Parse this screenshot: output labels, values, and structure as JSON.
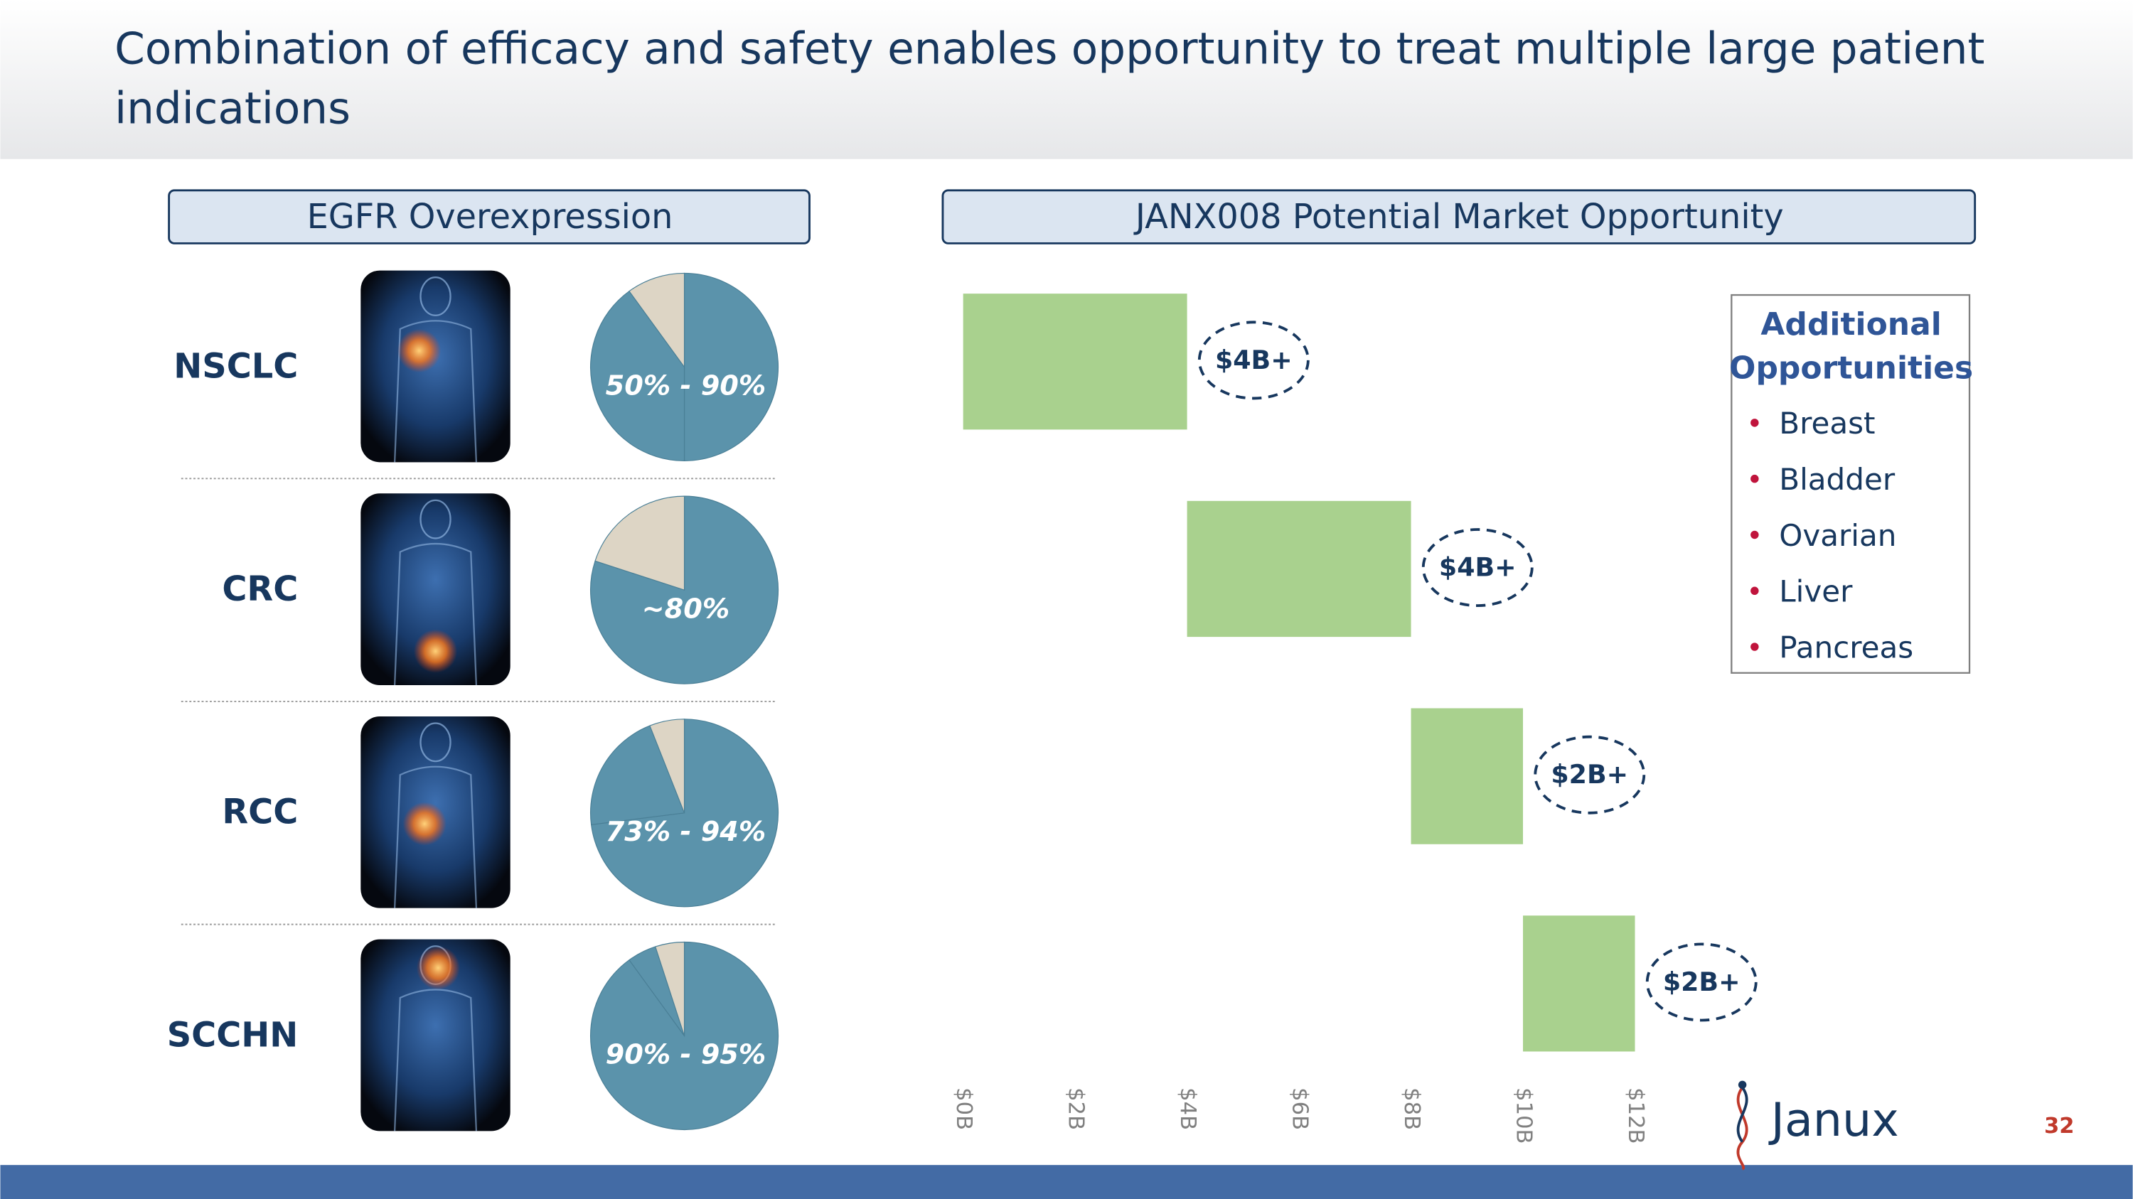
{
  "header": {
    "title_lines": [
      "Combination of efficacy and safety enables opportunity to treat multiple large patient",
      "indications"
    ]
  },
  "panel_heading": "EGFR Overexpression",
  "chart_data": [
    {
      "type": "pie",
      "title": "NSCLC",
      "values": [
        50,
        40,
        10
      ],
      "colors": [
        "#5b93ab",
        "#5b93ab",
        "#ddd5c5"
      ],
      "label": "50% - 90%"
    },
    {
      "type": "pie",
      "title": "CRC",
      "values": [
        80,
        20
      ],
      "colors": [
        "#5b93ab",
        "#ddd5c5"
      ],
      "label": "~80%"
    },
    {
      "type": "pie",
      "title": "RCC",
      "values": [
        73,
        21,
        6
      ],
      "colors": [
        "#5b93ab",
        "#5b93ab",
        "#ddd5c5"
      ],
      "label": "73% - 94%"
    },
    {
      "type": "pie",
      "title": "SCCHN",
      "values": [
        90,
        5,
        5
      ],
      "colors": [
        "#5b93ab",
        "#5b93ab",
        "#ddd5c5"
      ],
      "label": "90% - 95%"
    },
    {
      "type": "waterfall",
      "title": "JANX008 Potential Market Opportunity",
      "values": [
        4,
        4,
        2,
        2
      ],
      "value_labels": [
        "$4B+",
        "$4B+",
        "$2B+",
        "$2B+"
      ],
      "color": "#a9d18e",
      "xlim": [
        0,
        12
      ],
      "xticks": [
        {
          "value": 0,
          "label": "$0B"
        },
        {
          "value": 2,
          "label": "$2B"
        },
        {
          "value": 4,
          "label": "$4B"
        },
        {
          "value": 6,
          "label": "$6B"
        },
        {
          "value": 8,
          "label": "$8B"
        },
        {
          "value": 10,
          "label": "$10B"
        },
        {
          "value": 12,
          "label": "$12B"
        }
      ]
    }
  ],
  "additional": {
    "title_lines": [
      "Additional",
      "Opportunities"
    ],
    "items": [
      "Breast",
      "Bladder",
      "Ovarian",
      "Liver",
      "Pancreas"
    ]
  },
  "logo": "Janux",
  "page_number": "32"
}
